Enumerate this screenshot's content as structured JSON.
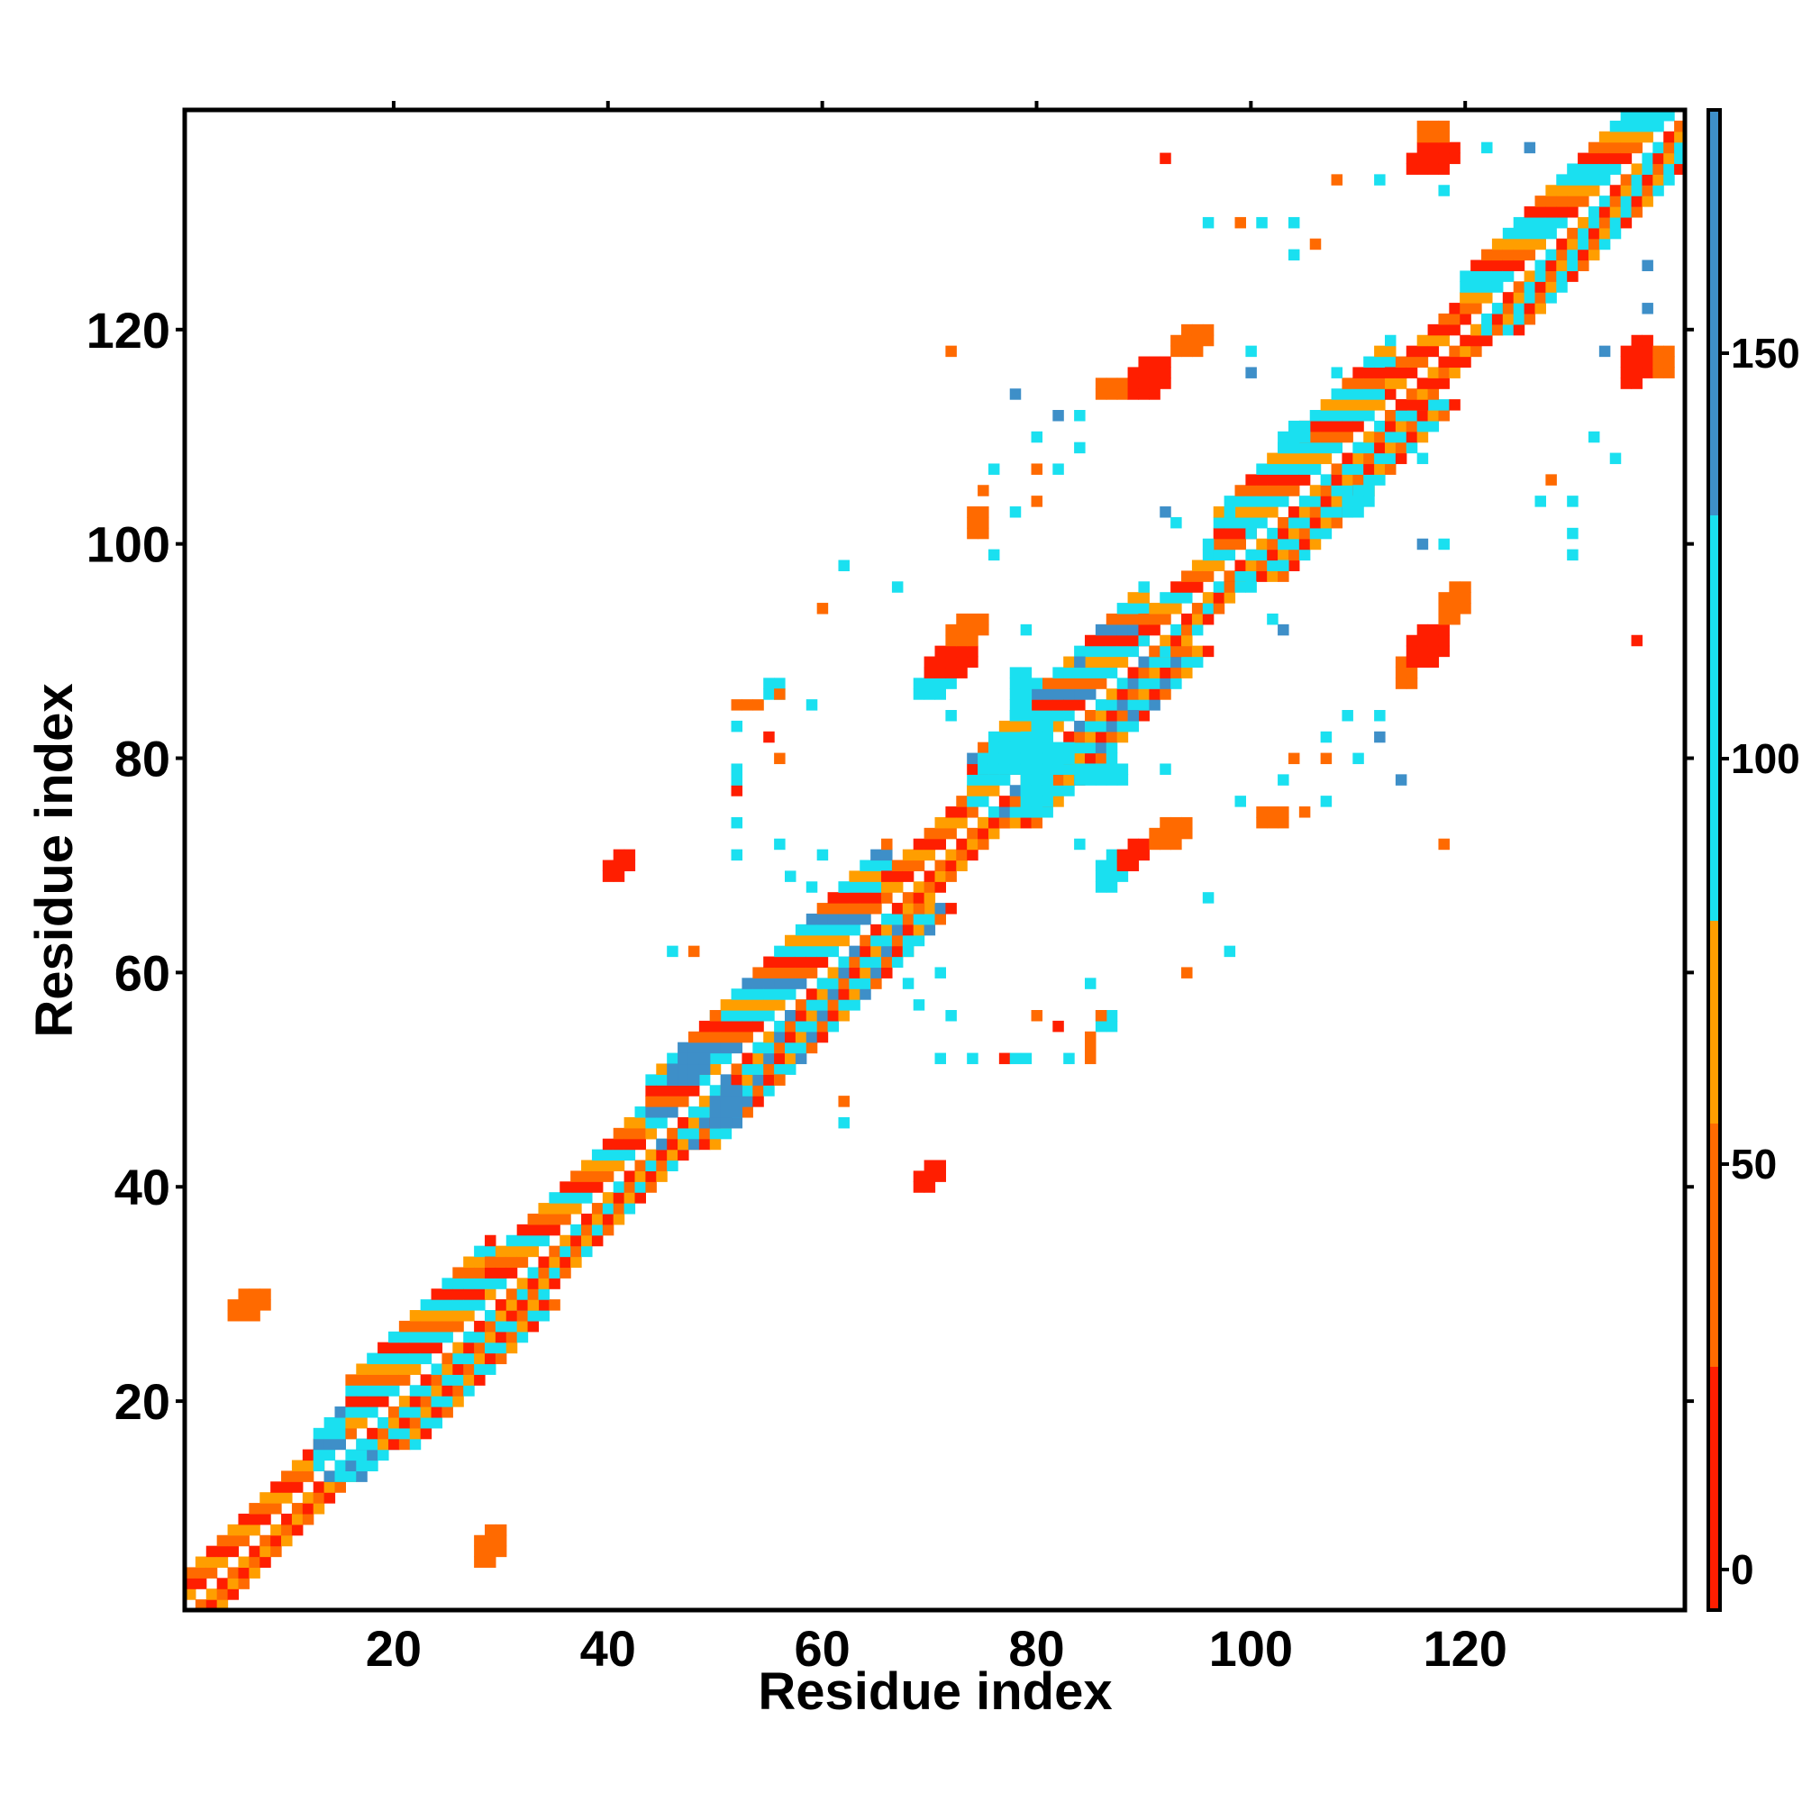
{
  "chart_data": {
    "type": "heatmap",
    "title": "",
    "xlabel": "Residue index",
    "ylabel": "Residue index",
    "xlim": [
      1,
      140
    ],
    "ylim": [
      1,
      140
    ],
    "x_ticks": [
      "20",
      "40",
      "60",
      "80",
      "100",
      "120"
    ],
    "y_ticks": [
      "20",
      "40",
      "60",
      "80",
      "100",
      "120"
    ],
    "colorbar": {
      "ticks": [
        "0",
        "50",
        "100",
        "150"
      ],
      "range": [
        -5,
        180
      ],
      "bands": [
        {
          "from": -5,
          "to": 25,
          "color": "#ff1e00"
        },
        {
          "from": 25,
          "to": 55,
          "color": "#ff6a00"
        },
        {
          "from": 55,
          "to": 80,
          "color": "#ff9e00"
        },
        {
          "from": 80,
          "to": 130,
          "color": "#1ae0f0"
        },
        {
          "from": 130,
          "to": 180,
          "color": "#3e8fc8"
        }
      ]
    },
    "color_legend": {
      "red": "#ff1e00",
      "orange": "#ff6a00",
      "amber": "#ff9e00",
      "cyan": "#1ae0f0",
      "blue": "#3e8fc8"
    },
    "diagonal_band": [
      {
        "from": 1,
        "to": 13,
        "pattern": [
          "red",
          "orange",
          "amber"
        ],
        "width": 3
      },
      {
        "from": 13,
        "to": 16,
        "pattern": [
          "cyan",
          "blue",
          "cyan"
        ],
        "width": 4
      },
      {
        "from": 16,
        "to": 29,
        "pattern": [
          "red",
          "cyan",
          "orange",
          "amber",
          "cyan"
        ],
        "width": 6
      },
      {
        "from": 29,
        "to": 44,
        "pattern": [
          "red",
          "orange",
          "amber",
          "cyan"
        ],
        "width": 4
      },
      {
        "from": 44,
        "to": 66,
        "pattern": [
          "orange",
          "red",
          "cyan",
          "amber",
          "cyan",
          "blue"
        ],
        "width": 6
      },
      {
        "from": 66,
        "to": 74,
        "pattern": [
          "red",
          "orange",
          "amber"
        ],
        "width": 3
      },
      {
        "from": 74,
        "to": 90,
        "pattern": [
          "cyan",
          "red",
          "blue",
          "orange",
          "cyan",
          "amber"
        ],
        "width": 6
      },
      {
        "from": 90,
        "to": 97,
        "pattern": [
          "red",
          "orange",
          "amber",
          "cyan"
        ],
        "width": 3
      },
      {
        "from": 97,
        "to": 113,
        "pattern": [
          "orange",
          "red",
          "cyan",
          "amber",
          "cyan"
        ],
        "width": 6
      },
      {
        "from": 113,
        "to": 120,
        "pattern": [
          "red",
          "orange",
          "red",
          "amber"
        ],
        "width": 3
      },
      {
        "from": 120,
        "to": 140,
        "pattern": [
          "cyan",
          "red",
          "orange",
          "amber",
          "cyan"
        ],
        "width": 5
      }
    ],
    "contact_blocks": [
      {
        "x": 5,
        "y": 28,
        "w": 4,
        "h": 3,
        "color": "orange"
      },
      {
        "x": 28,
        "y": 5,
        "w": 3,
        "h": 4,
        "color": "orange"
      },
      {
        "x": 40,
        "y": 69,
        "w": 3,
        "h": 3,
        "color": "red"
      },
      {
        "x": 69,
        "y": 40,
        "w": 3,
        "h": 3,
        "color": "red"
      },
      {
        "x": 69,
        "y": 86,
        "w": 4,
        "h": 3,
        "color": "cyan"
      },
      {
        "x": 70,
        "y": 88,
        "w": 5,
        "h": 3,
        "color": "red"
      },
      {
        "x": 72,
        "y": 91,
        "w": 4,
        "h": 3,
        "color": "orange"
      },
      {
        "x": 86,
        "y": 68,
        "w": 3,
        "h": 4,
        "color": "cyan"
      },
      {
        "x": 88,
        "y": 70,
        "w": 3,
        "h": 3,
        "color": "red"
      },
      {
        "x": 91,
        "y": 72,
        "w": 4,
        "h": 3,
        "color": "orange"
      },
      {
        "x": 86,
        "y": 114,
        "w": 3,
        "h": 2,
        "color": "orange"
      },
      {
        "x": 89,
        "y": 114,
        "w": 4,
        "h": 4,
        "color": "red"
      },
      {
        "x": 93,
        "y": 118,
        "w": 4,
        "h": 3,
        "color": "orange"
      },
      {
        "x": 114,
        "y": 87,
        "w": 2,
        "h": 3,
        "color": "orange"
      },
      {
        "x": 115,
        "y": 89,
        "w": 4,
        "h": 4,
        "color": "red"
      },
      {
        "x": 118,
        "y": 93,
        "w": 3,
        "h": 4,
        "color": "orange"
      },
      {
        "x": 115,
        "y": 135,
        "w": 5,
        "h": 3,
        "color": "red"
      },
      {
        "x": 116,
        "y": 138,
        "w": 3,
        "h": 2,
        "color": "orange"
      },
      {
        "x": 135,
        "y": 115,
        "w": 3,
        "h": 5,
        "color": "red"
      },
      {
        "x": 138,
        "y": 116,
        "w": 2,
        "h": 3,
        "color": "orange"
      },
      {
        "x": 75,
        "y": 79,
        "w": 9,
        "h": 3,
        "color": "cyan"
      },
      {
        "x": 79,
        "y": 75,
        "w": 3,
        "h": 9,
        "color": "cyan"
      },
      {
        "x": 84,
        "y": 78,
        "w": 5,
        "h": 2,
        "color": "cyan"
      },
      {
        "x": 78,
        "y": 84,
        "w": 2,
        "h": 5,
        "color": "cyan"
      },
      {
        "x": 46,
        "y": 50,
        "w": 4,
        "h": 3,
        "color": "blue"
      },
      {
        "x": 50,
        "y": 46,
        "w": 3,
        "h": 4,
        "color": "blue"
      },
      {
        "x": 52,
        "y": 85,
        "w": 3,
        "h": 1,
        "color": "orange"
      },
      {
        "x": 55,
        "y": 86,
        "w": 2,
        "h": 2,
        "color": "cyan"
      },
      {
        "x": 85,
        "y": 52,
        "w": 1,
        "h": 3,
        "color": "orange"
      },
      {
        "x": 86,
        "y": 55,
        "w": 2,
        "h": 2,
        "color": "cyan"
      },
      {
        "x": 103,
        "y": 109,
        "w": 3,
        "h": 3,
        "color": "cyan"
      },
      {
        "x": 109,
        "y": 103,
        "w": 3,
        "h": 3,
        "color": "cyan"
      },
      {
        "x": 74,
        "y": 101,
        "w": 2,
        "h": 3,
        "color": "orange"
      },
      {
        "x": 101,
        "y": 74,
        "w": 3,
        "h": 2,
        "color": "orange"
      }
    ],
    "contact_points": [
      [
        92,
        136,
        "red"
      ],
      [
        136,
        91,
        "red"
      ],
      [
        108,
        134,
        "orange"
      ],
      [
        134,
        108,
        "cyan"
      ],
      [
        99,
        130,
        "orange"
      ],
      [
        130,
        99,
        "cyan"
      ],
      [
        104,
        130,
        "cyan"
      ],
      [
        130,
        104,
        "cyan"
      ],
      [
        112,
        134,
        "cyan"
      ],
      [
        132,
        110,
        "cyan"
      ],
      [
        126,
        137,
        "blue"
      ],
      [
        137,
        126,
        "blue"
      ],
      [
        122,
        137,
        "cyan"
      ],
      [
        137,
        122,
        "blue"
      ],
      [
        118,
        133,
        "cyan"
      ],
      [
        133,
        118,
        "blue"
      ],
      [
        96,
        130,
        "cyan"
      ],
      [
        100,
        118,
        "cyan"
      ],
      [
        118,
        100,
        "cyan"
      ],
      [
        100,
        116,
        "blue"
      ],
      [
        116,
        100,
        "blue"
      ],
      [
        72,
        118,
        "orange"
      ],
      [
        118,
        72,
        "orange"
      ],
      [
        78,
        114,
        "blue"
      ],
      [
        114,
        78,
        "blue"
      ],
      [
        82,
        112,
        "blue"
      ],
      [
        112,
        82,
        "blue"
      ],
      [
        80,
        110,
        "cyan"
      ],
      [
        110,
        80,
        "cyan"
      ],
      [
        84,
        109,
        "cyan"
      ],
      [
        109,
        84,
        "cyan"
      ],
      [
        76,
        107,
        "cyan"
      ],
      [
        107,
        76,
        "cyan"
      ],
      [
        78,
        103,
        "cyan"
      ],
      [
        103,
        78,
        "cyan"
      ],
      [
        75,
        105,
        "orange"
      ],
      [
        105,
        75,
        "orange"
      ],
      [
        76,
        99,
        "cyan"
      ],
      [
        99,
        76,
        "cyan"
      ],
      [
        80,
        107,
        "orange"
      ],
      [
        107,
        80,
        "orange"
      ],
      [
        92,
        103,
        "blue"
      ],
      [
        103,
        92,
        "blue"
      ],
      [
        102,
        93,
        "cyan"
      ],
      [
        93,
        102,
        "cyan"
      ],
      [
        107,
        82,
        "cyan"
      ],
      [
        82,
        107,
        "cyan"
      ],
      [
        112,
        84,
        "cyan"
      ],
      [
        84,
        112,
        "cyan"
      ],
      [
        104,
        80,
        "orange"
      ],
      [
        80,
        104,
        "orange"
      ],
      [
        116,
        108,
        "cyan"
      ],
      [
        108,
        116,
        "cyan"
      ],
      [
        127,
        104,
        "cyan"
      ],
      [
        104,
        127,
        "cyan"
      ],
      [
        130,
        101,
        "cyan"
      ],
      [
        101,
        130,
        "cyan"
      ],
      [
        128,
        106,
        "orange"
      ],
      [
        106,
        128,
        "orange"
      ],
      [
        96,
        100,
        "cyan"
      ],
      [
        100,
        96,
        "cyan"
      ],
      [
        100,
        101,
        "cyan"
      ],
      [
        103,
        98,
        "cyan"
      ],
      [
        98,
        103,
        "cyan"
      ],
      [
        84,
        89,
        "blue"
      ],
      [
        89,
        84,
        "blue"
      ],
      [
        80,
        87,
        "cyan"
      ],
      [
        87,
        80,
        "cyan"
      ],
      [
        79,
        92,
        "cyan"
      ],
      [
        92,
        79,
        "cyan"
      ],
      [
        67,
        96,
        "cyan"
      ],
      [
        96,
        67,
        "cyan"
      ],
      [
        52,
        79,
        "cyan"
      ],
      [
        79,
        52,
        "cyan"
      ],
      [
        52,
        77,
        "red"
      ],
      [
        77,
        52,
        "red"
      ],
      [
        56,
        80,
        "orange"
      ],
      [
        80,
        56,
        "orange"
      ],
      [
        59,
        85,
        "cyan"
      ],
      [
        85,
        59,
        "cyan"
      ],
      [
        60,
        71,
        "cyan"
      ],
      [
        71,
        60,
        "cyan"
      ],
      [
        57,
        69,
        "cyan"
      ],
      [
        69,
        57,
        "cyan"
      ],
      [
        62,
        68,
        "cyan"
      ],
      [
        68,
        62,
        "cyan"
      ],
      [
        68,
        59,
        "cyan"
      ],
      [
        59,
        68,
        "cyan"
      ],
      [
        72,
        56,
        "cyan"
      ],
      [
        56,
        72,
        "cyan"
      ],
      [
        71,
        52,
        "cyan"
      ],
      [
        52,
        71,
        "cyan"
      ],
      [
        78,
        52,
        "cyan"
      ],
      [
        52,
        78,
        "cyan"
      ],
      [
        83,
        52,
        "cyan"
      ],
      [
        52,
        83,
        "cyan"
      ],
      [
        82,
        55,
        "red"
      ],
      [
        55,
        82,
        "red"
      ],
      [
        56,
        86,
        "orange"
      ],
      [
        86,
        56,
        "orange"
      ],
      [
        52,
        74,
        "cyan"
      ],
      [
        74,
        52,
        "cyan"
      ],
      [
        62,
        48,
        "orange"
      ],
      [
        48,
        62,
        "orange"
      ],
      [
        62,
        46,
        "cyan"
      ],
      [
        46,
        62,
        "cyan"
      ],
      [
        50,
        56,
        "orange"
      ],
      [
        56,
        50,
        "orange"
      ],
      [
        84,
        72,
        "cyan"
      ],
      [
        72,
        84,
        "cyan"
      ],
      [
        94,
        60,
        "orange"
      ],
      [
        60,
        94,
        "orange"
      ],
      [
        98,
        62,
        "cyan"
      ],
      [
        62,
        98,
        "cyan"
      ]
    ]
  }
}
